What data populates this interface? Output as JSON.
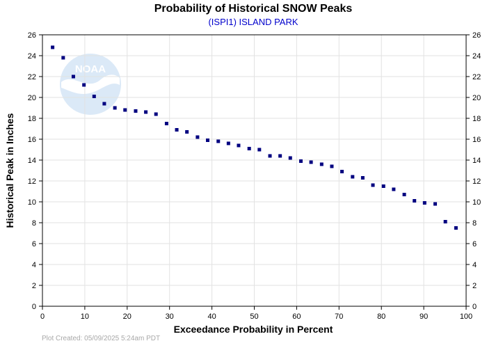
{
  "colors": {
    "subtitle": "#0000cc",
    "marker": "#000080",
    "grid": "#e2e2e2",
    "logo_fill": "#dbe9f7",
    "logo_text": "#ffffff"
  },
  "logo": {
    "text": "NOAA"
  },
  "footer": {
    "text": "Plot Created:  05/09/2025 5:24am PDT"
  },
  "chart_data": {
    "type": "scatter",
    "title": "Probability of Historical SNOW Peaks",
    "subtitle": "(ISPI1) ISLAND PARK",
    "xlabel": "Exceedance Probability in Percent",
    "ylabel": "Historical Peak in Inches",
    "xlim": [
      0,
      100
    ],
    "ylim": [
      0,
      26
    ],
    "xticks": [
      0,
      10,
      20,
      30,
      40,
      50,
      60,
      70,
      80,
      90,
      100
    ],
    "yticks": [
      0,
      2,
      4,
      6,
      8,
      10,
      12,
      14,
      16,
      18,
      20,
      22,
      24,
      26
    ],
    "grid": true,
    "right_axis_mirrored": true,
    "points": [
      {
        "x": 2.4,
        "y": 24.8
      },
      {
        "x": 4.9,
        "y": 23.8
      },
      {
        "x": 7.3,
        "y": 22.0
      },
      {
        "x": 9.8,
        "y": 21.2
      },
      {
        "x": 12.2,
        "y": 20.1
      },
      {
        "x": 14.6,
        "y": 19.4
      },
      {
        "x": 17.1,
        "y": 19.0
      },
      {
        "x": 19.5,
        "y": 18.8
      },
      {
        "x": 22.0,
        "y": 18.7
      },
      {
        "x": 24.4,
        "y": 18.6
      },
      {
        "x": 26.8,
        "y": 18.4
      },
      {
        "x": 29.3,
        "y": 17.5
      },
      {
        "x": 31.7,
        "y": 16.9
      },
      {
        "x": 34.1,
        "y": 16.7
      },
      {
        "x": 36.6,
        "y": 16.2
      },
      {
        "x": 39.0,
        "y": 15.9
      },
      {
        "x": 41.5,
        "y": 15.8
      },
      {
        "x": 43.9,
        "y": 15.6
      },
      {
        "x": 46.3,
        "y": 15.4
      },
      {
        "x": 48.8,
        "y": 15.1
      },
      {
        "x": 51.2,
        "y": 15.0
      },
      {
        "x": 53.7,
        "y": 14.4
      },
      {
        "x": 56.1,
        "y": 14.4
      },
      {
        "x": 58.5,
        "y": 14.2
      },
      {
        "x": 61.0,
        "y": 13.9
      },
      {
        "x": 63.4,
        "y": 13.8
      },
      {
        "x": 65.9,
        "y": 13.6
      },
      {
        "x": 68.3,
        "y": 13.4
      },
      {
        "x": 70.7,
        "y": 12.9
      },
      {
        "x": 73.2,
        "y": 12.4
      },
      {
        "x": 75.6,
        "y": 12.3
      },
      {
        "x": 78.0,
        "y": 11.6
      },
      {
        "x": 80.5,
        "y": 11.5
      },
      {
        "x": 82.9,
        "y": 11.2
      },
      {
        "x": 85.4,
        "y": 10.7
      },
      {
        "x": 87.8,
        "y": 10.1
      },
      {
        "x": 90.2,
        "y": 9.9
      },
      {
        "x": 92.7,
        "y": 9.8
      },
      {
        "x": 95.1,
        "y": 8.1
      },
      {
        "x": 97.6,
        "y": 7.5
      }
    ]
  }
}
